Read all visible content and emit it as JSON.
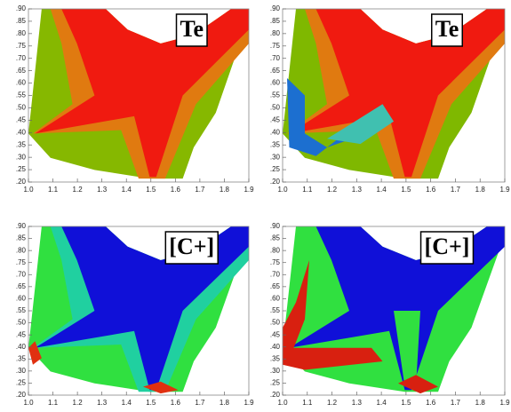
{
  "chart_data": [
    {
      "type": "contour",
      "annotation": "Te",
      "xlim": [
        1.0,
        1.9
      ],
      "ylim": [
        0.2,
        0.9
      ],
      "xticks": [
        {
          "value": 1.0,
          "label": "1.0"
        },
        1.1,
        1.2,
        1.3,
        1.4,
        1.5,
        1.6,
        1.7,
        1.8,
        1.9
      ],
      "yticks": [
        {
          "value": 0.2,
          "label": ".20"
        },
        {
          "value": 0.25,
          "label": ".25"
        },
        {
          "value": 0.3,
          "label": ".30"
        },
        {
          "value": 0.35,
          "label": ".35"
        },
        {
          "value": 0.4,
          "label": ".40"
        },
        {
          "value": 0.45,
          "label": ".45"
        },
        {
          "value": 0.5,
          "label": ".50"
        },
        {
          "value": 0.55,
          "label": ".55"
        },
        {
          "value": 0.6,
          "label": ".60"
        },
        {
          "value": 0.65,
          "label": ".65"
        },
        {
          "value": 0.7,
          "label": ".70"
        },
        {
          "value": 0.75,
          "label": ".75"
        },
        {
          "value": 0.8,
          "label": ".80"
        },
        {
          "value": 0.85,
          "label": ".85"
        },
        {
          "value": 0.9,
          "label": ".90"
        }
      ]
    },
    {
      "type": "contour",
      "annotation": "Te",
      "xlim": [
        1.0,
        1.9
      ],
      "ylim": [
        0.2,
        0.9
      ],
      "xticks": [
        {
          "value": 1.0,
          "label": "1.0"
        },
        1.1,
        1.2,
        1.3,
        1.4,
        1.5,
        1.6,
        1.7,
        1.8,
        1.9
      ],
      "yticks": [
        {
          "value": 0.2,
          "label": ".20"
        },
        {
          "value": 0.25,
          "label": ".25"
        },
        {
          "value": 0.3,
          "label": ".30"
        },
        {
          "value": 0.35,
          "label": ".35"
        },
        {
          "value": 0.4,
          "label": ".40"
        },
        {
          "value": 0.45,
          "label": ".45"
        },
        {
          "value": 0.5,
          "label": ".50"
        },
        {
          "value": 0.55,
          "label": ".55"
        },
        {
          "value": 0.6,
          "label": ".60"
        },
        {
          "value": 0.65,
          "label": ".65"
        },
        {
          "value": 0.7,
          "label": ".70"
        },
        {
          "value": 0.75,
          "label": ".75"
        },
        {
          "value": 0.8,
          "label": ".80"
        },
        {
          "value": 0.85,
          "label": ".85"
        },
        {
          "value": 0.9,
          "label": ".90"
        }
      ]
    },
    {
      "type": "contour",
      "annotation": "[C+]",
      "xlim": [
        1.0,
        1.9
      ],
      "ylim": [
        0.2,
        0.9
      ],
      "xticks": [
        {
          "value": 1.0,
          "label": "1.0"
        },
        1.1,
        1.2,
        1.3,
        1.4,
        1.5,
        1.6,
        1.7,
        1.8,
        1.9
      ],
      "yticks": [
        {
          "value": 0.2,
          "label": ".20"
        },
        {
          "value": 0.25,
          "label": ".25"
        },
        {
          "value": 0.3,
          "label": ".30"
        },
        {
          "value": 0.35,
          "label": ".35"
        },
        {
          "value": 0.4,
          "label": ".40"
        },
        {
          "value": 0.45,
          "label": ".45"
        },
        {
          "value": 0.5,
          "label": ".50"
        },
        {
          "value": 0.55,
          "label": ".55"
        },
        {
          "value": 0.6,
          "label": ".60"
        },
        {
          "value": 0.65,
          "label": ".65"
        },
        {
          "value": 0.7,
          "label": ".70"
        },
        {
          "value": 0.75,
          "label": ".75"
        },
        {
          "value": 0.8,
          "label": ".80"
        },
        {
          "value": 0.85,
          "label": ".85"
        },
        {
          "value": 0.9,
          "label": ".90"
        }
      ]
    },
    {
      "type": "contour",
      "annotation": "[C+]",
      "xlim": [
        1.0,
        1.9
      ],
      "ylim": [
        0.2,
        0.9
      ],
      "xticks": [
        {
          "value": 1.0,
          "label": "1.0"
        },
        1.1,
        1.2,
        1.3,
        1.4,
        1.5,
        1.6,
        1.7,
        1.8,
        1.9
      ],
      "yticks": [
        {
          "value": 0.2,
          "label": ".20"
        },
        {
          "value": 0.25,
          "label": ".25"
        },
        {
          "value": 0.3,
          "label": ".30"
        },
        {
          "value": 0.35,
          "label": ".35"
        },
        {
          "value": 0.4,
          "label": ".40"
        },
        {
          "value": 0.45,
          "label": ".45"
        },
        {
          "value": 0.5,
          "label": ".50"
        },
        {
          "value": 0.55,
          "label": ".55"
        },
        {
          "value": 0.6,
          "label": ".60"
        },
        {
          "value": 0.65,
          "label": ".65"
        },
        {
          "value": 0.7,
          "label": ".70"
        },
        {
          "value": 0.75,
          "label": ".75"
        },
        {
          "value": 0.8,
          "label": ".80"
        },
        {
          "value": 0.85,
          "label": ".85"
        },
        {
          "value": 0.9,
          "label": ".90"
        }
      ]
    }
  ]
}
